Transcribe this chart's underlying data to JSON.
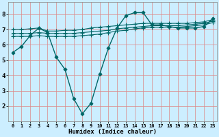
{
  "xlabel": "Humidex (Indice chaleur)",
  "background_color": "#cceeff",
  "grid_color": "#dd8888",
  "line_color": "#006666",
  "xlim": [
    -0.5,
    23.5
  ],
  "ylim": [
    1.0,
    8.8
  ],
  "yticks": [
    2,
    3,
    4,
    5,
    6,
    7,
    8
  ],
  "xticks": [
    0,
    1,
    2,
    3,
    4,
    5,
    6,
    7,
    8,
    9,
    10,
    11,
    12,
    13,
    14,
    15,
    16,
    17,
    18,
    19,
    20,
    21,
    22,
    23
  ],
  "lines": [
    [
      5.5,
      5.9,
      6.6,
      7.1,
      6.8,
      5.2,
      4.4,
      2.5,
      1.5,
      2.2,
      4.1,
      5.8,
      7.1,
      7.9,
      8.1,
      8.1,
      7.3,
      7.3,
      7.2,
      7.1,
      7.1,
      7.1,
      7.2,
      7.7
    ],
    [
      7.0,
      7.0,
      7.05,
      7.1,
      6.9,
      6.9,
      6.95,
      6.95,
      7.0,
      7.1,
      7.15,
      7.2,
      7.25,
      7.3,
      7.35,
      7.4,
      7.4,
      7.4,
      7.4,
      7.4,
      7.4,
      7.45,
      7.5,
      7.65
    ],
    [
      6.75,
      6.75,
      6.75,
      6.8,
      6.75,
      6.75,
      6.75,
      6.75,
      6.8,
      6.85,
      6.9,
      6.95,
      7.05,
      7.1,
      7.15,
      7.2,
      7.25,
      7.25,
      7.25,
      7.25,
      7.3,
      7.35,
      7.4,
      7.55
    ],
    [
      6.55,
      6.55,
      6.55,
      6.6,
      6.55,
      6.55,
      6.55,
      6.55,
      6.6,
      6.65,
      6.7,
      6.8,
      6.9,
      6.95,
      7.05,
      7.1,
      7.15,
      7.15,
      7.15,
      7.15,
      7.2,
      7.25,
      7.3,
      7.45
    ]
  ],
  "markers": [
    "D",
    "+",
    "+",
    "+"
  ],
  "markersizes": [
    2.5,
    4,
    4,
    4
  ],
  "linewidths": [
    1.0,
    0.8,
    0.8,
    0.8
  ]
}
